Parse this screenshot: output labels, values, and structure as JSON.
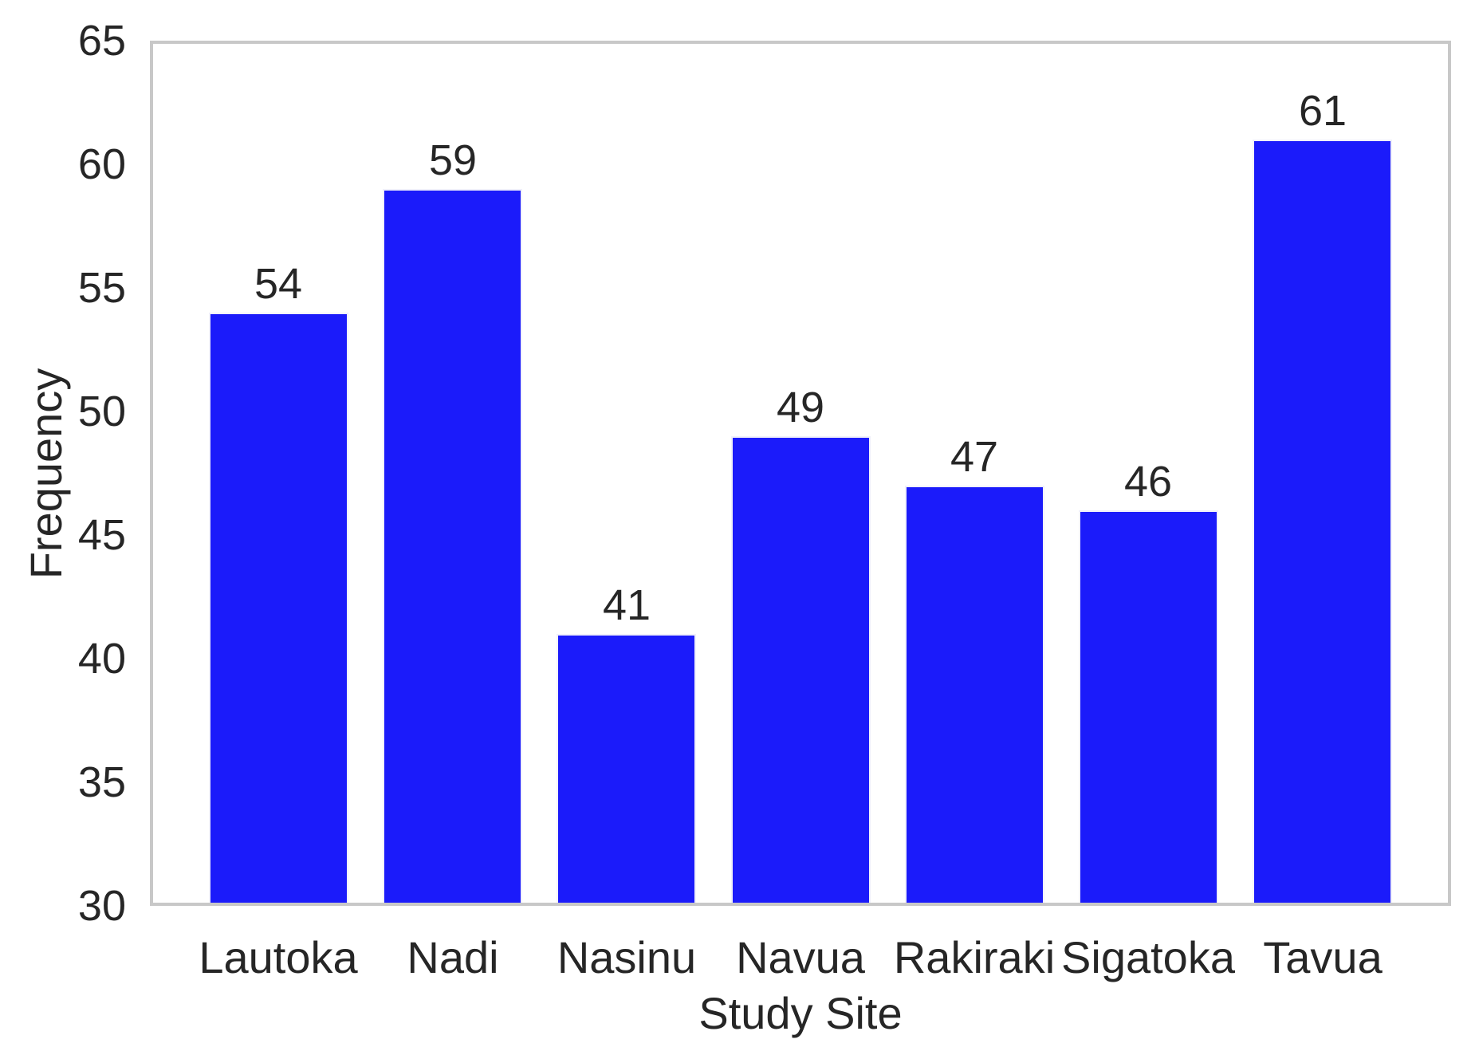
{
  "chart_data": {
    "type": "bar",
    "title": "",
    "xlabel": "Study Site",
    "ylabel": "Frequency",
    "categories": [
      "Lautoka",
      "Nadi",
      "Nasinu",
      "Navua",
      "Rakiraki",
      "Sigatoka",
      "Tavua"
    ],
    "values": [
      54,
      59,
      41,
      49,
      47,
      46,
      61
    ],
    "bar_labels": [
      "54",
      "59",
      "41",
      "49",
      "47",
      "46",
      "61"
    ],
    "ylim": [
      30,
      65
    ],
    "yticks": [
      30,
      35,
      40,
      45,
      50,
      55,
      60,
      65
    ],
    "grid": false,
    "legend": null,
    "colors": {
      "bar_fill": "#1b1bfa",
      "bar_edge": "#f0f0fa",
      "frame": "#c8c8c8",
      "text": "#262626",
      "background": "#ffffff"
    }
  }
}
